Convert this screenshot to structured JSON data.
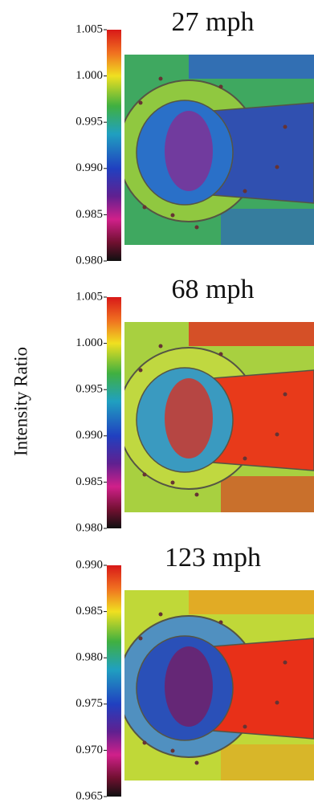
{
  "chart_data": [
    {
      "type": "heatmap",
      "title": "27 mph",
      "clim": [
        0.98,
        1.005
      ],
      "cticks": [
        {
          "value": 1.005,
          "label": "1.005"
        },
        {
          "value": 1.0,
          "label": "1.000"
        },
        {
          "value": 0.995,
          "label": "0.995"
        },
        {
          "value": 0.99,
          "label": "0.990"
        },
        {
          "value": 0.985,
          "label": "0.985"
        },
        {
          "value": 0.98,
          "label": "0.980"
        }
      ]
    },
    {
      "type": "heatmap",
      "title": "68 mph",
      "ylabel": "Intensity Ratio",
      "clim": [
        0.98,
        1.005
      ],
      "cticks": [
        {
          "value": 1.005,
          "label": "1.005"
        },
        {
          "value": 1.0,
          "label": "1.000"
        },
        {
          "value": 0.995,
          "label": "0.995"
        },
        {
          "value": 0.99,
          "label": "0.990"
        },
        {
          "value": 0.985,
          "label": "0.985"
        },
        {
          "value": 0.98,
          "label": "0.980"
        }
      ]
    },
    {
      "type": "heatmap",
      "title": "123 mph",
      "clim": [
        0.965,
        0.99
      ],
      "cticks": [
        {
          "value": 0.99,
          "label": "0.990"
        },
        {
          "value": 0.985,
          "label": "0.985"
        },
        {
          "value": 0.98,
          "label": "0.980"
        },
        {
          "value": 0.975,
          "label": "0.975"
        },
        {
          "value": 0.97,
          "label": "0.970"
        },
        {
          "value": 0.965,
          "label": "0.965"
        }
      ]
    }
  ]
}
